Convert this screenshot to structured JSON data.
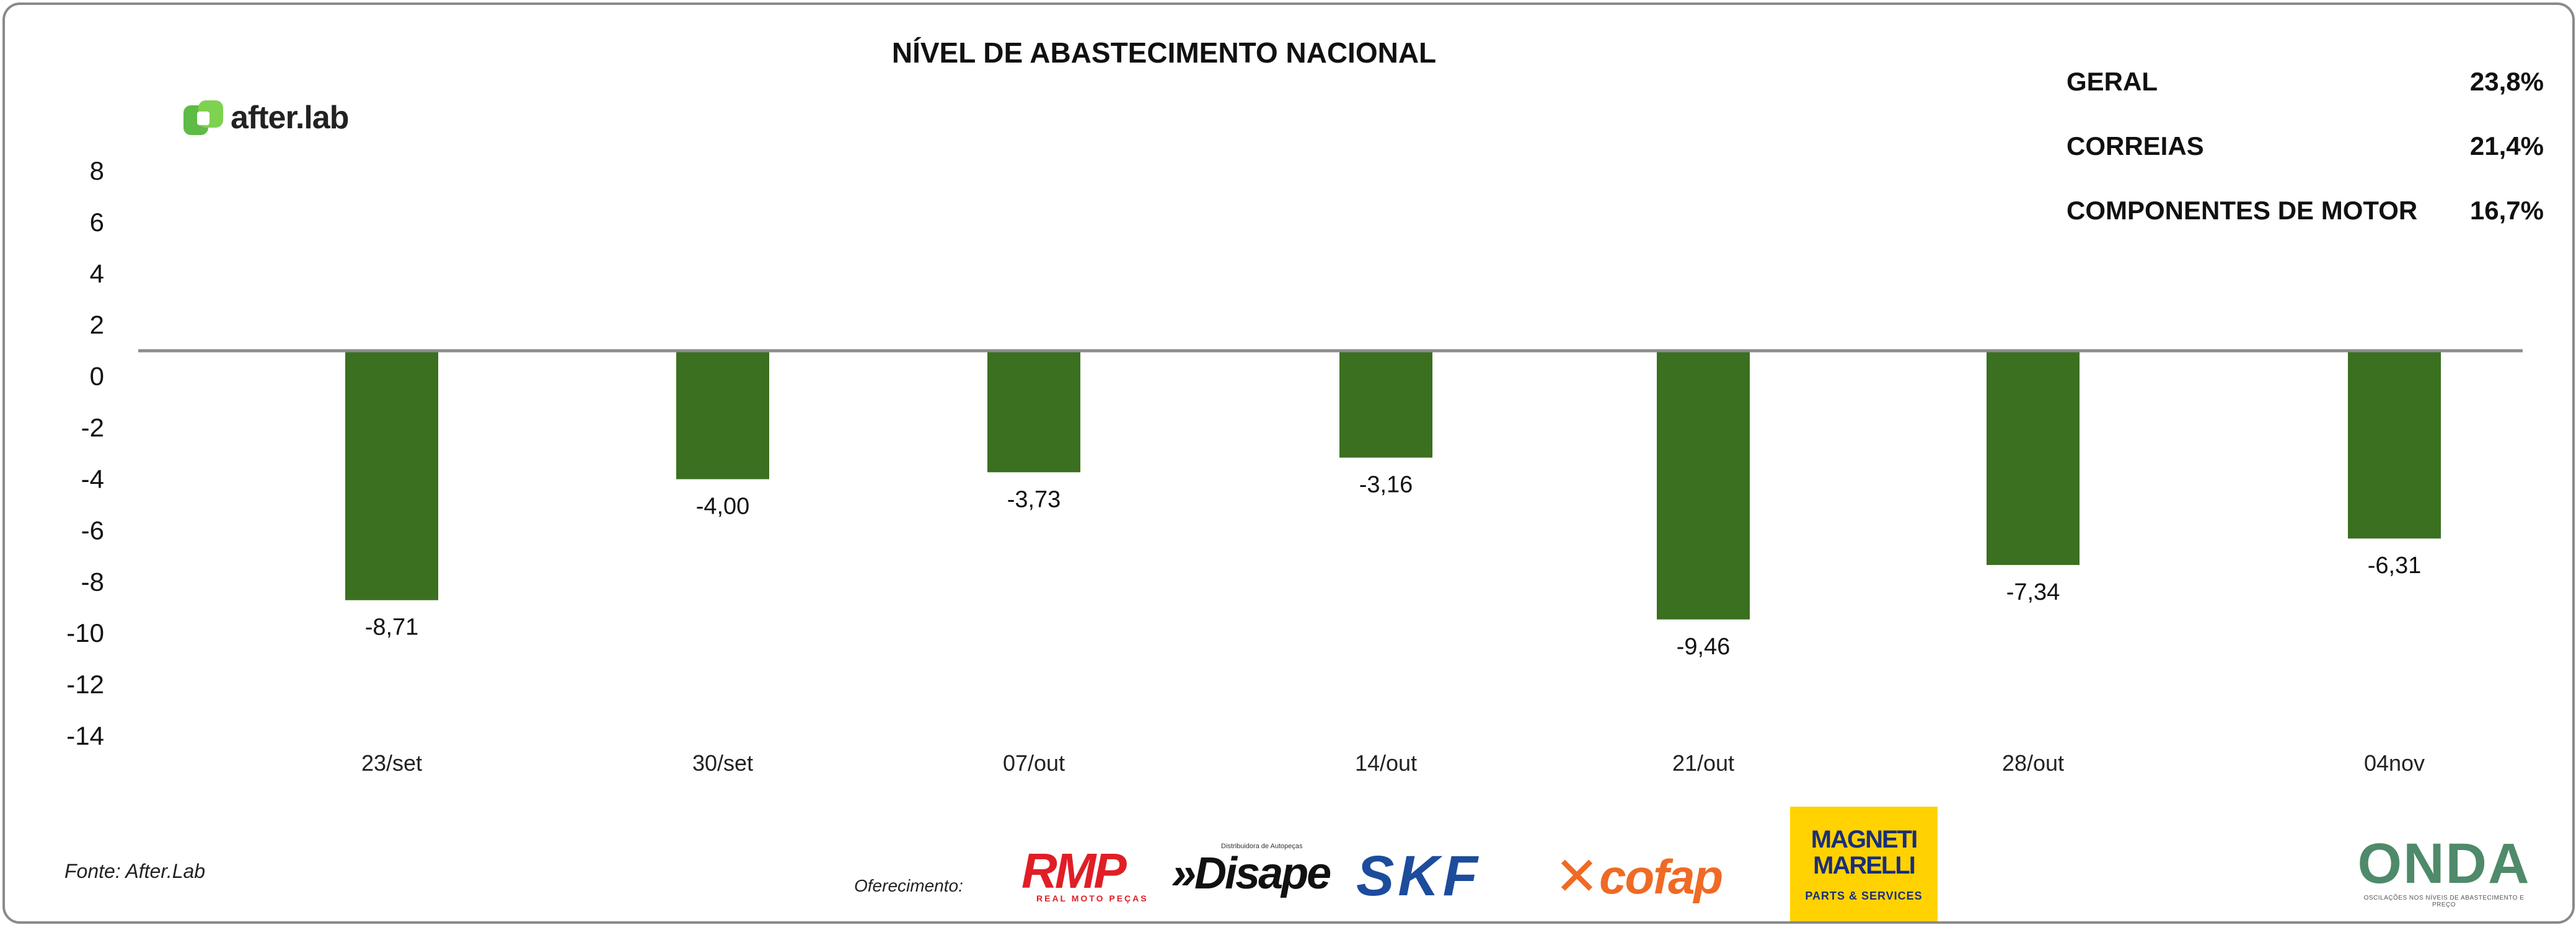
{
  "header": {
    "title": "NÍVEL DE ABASTECIMENTO NACIONAL"
  },
  "brand": {
    "name": "after.lab",
    "icon": "afterlab-logo-icon",
    "color": "#5dbb46"
  },
  "summary": [
    {
      "label": "GERAL",
      "value": "23,8%"
    },
    {
      "label": "CORREIAS",
      "value": "21,4%"
    },
    {
      "label": "COMPONENTES DE MOTOR",
      "value": "16,7%"
    }
  ],
  "chart_data": {
    "type": "bar",
    "title": "NÍVEL DE ABASTECIMENTO NACIONAL",
    "xlabel": "",
    "ylabel": "",
    "categories": [
      "23/set",
      "30/set",
      "07/out",
      "14/out",
      "21/out",
      "28/out",
      "04nov"
    ],
    "values": [
      -8.71,
      -4.0,
      -3.73,
      -3.16,
      -9.46,
      -7.34,
      -6.31
    ],
    "value_labels": [
      "-8,71",
      "-4,00",
      "-3,73",
      "-3,16",
      "-9,46",
      "-7,34",
      "-6,31"
    ],
    "y_ticks": [
      8,
      6,
      4,
      2,
      0,
      -2,
      -4,
      -6,
      -8,
      -10,
      -12,
      -14
    ],
    "y_tick_labels": [
      "8",
      "6",
      "4",
      "2",
      "0",
      "-2",
      "-4",
      "-6",
      "-8",
      "-10",
      "-12",
      "-14"
    ],
    "ylim": [
      -14,
      8
    ],
    "baseline": 1,
    "grid": false,
    "legend": "none",
    "bar_color": "#3a7020",
    "axis_color": "#8c8c8c"
  },
  "footer": {
    "source": "Fonte: After.Lab",
    "offer_label": "Oferecimento:",
    "sponsors": {
      "rmp": {
        "logo": "RMP",
        "sub": "REAL MOTO PEÇAS"
      },
      "disape": {
        "tag": "Distribuidora de Autopeças",
        "name": "»Disape"
      },
      "skf": {
        "name": "SKF"
      },
      "cofap": {
        "mark": "✕",
        "name": "cofap"
      },
      "magneti": {
        "line1": "MAGNETI",
        "line2": "MARELLI",
        "line3": "PARTS & SERVICES"
      },
      "onda": {
        "name": "ONDA",
        "sub": "OSCILAÇÕES NOS NÍVEIS DE ABASTECIMENTO E PREÇO"
      }
    }
  }
}
